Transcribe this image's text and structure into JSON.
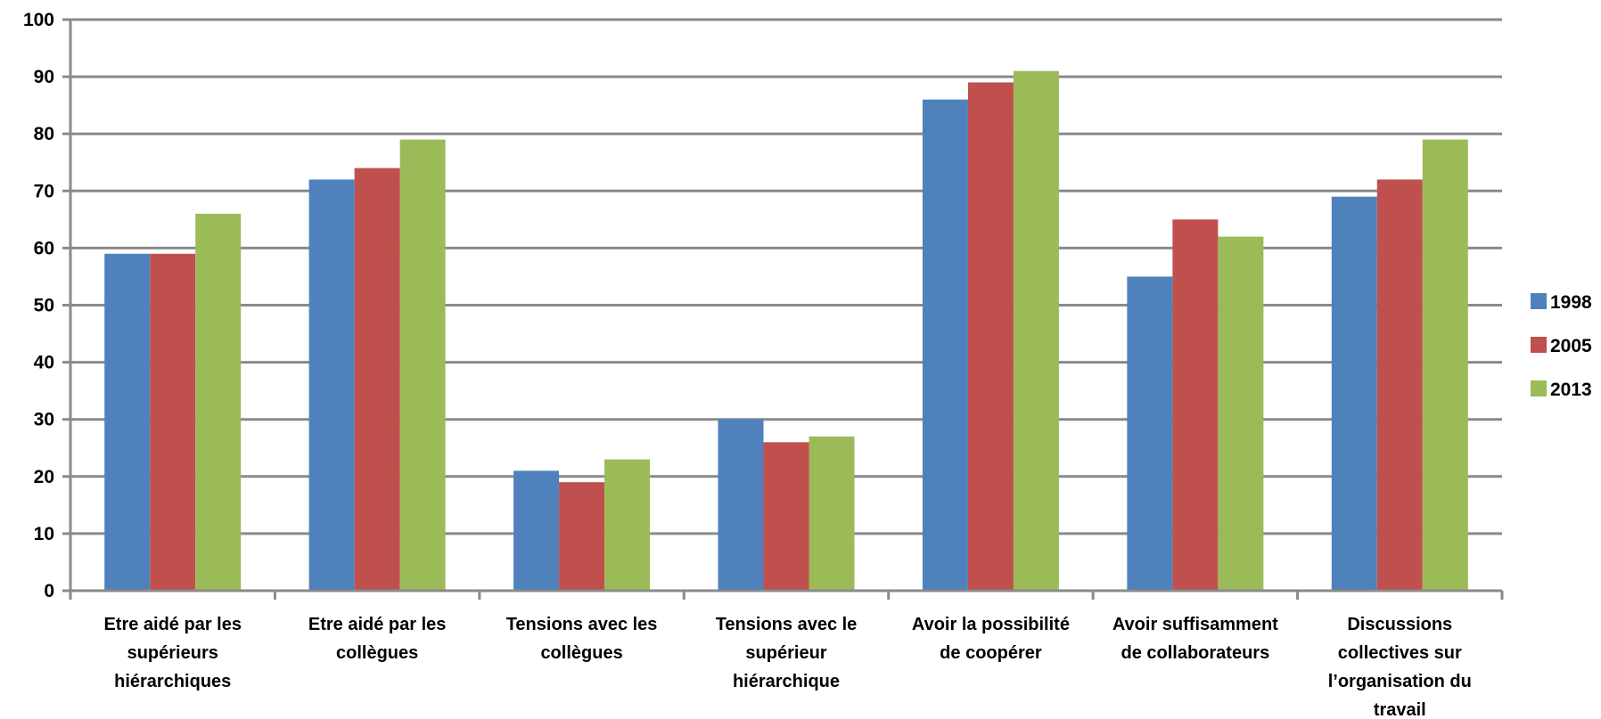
{
  "chart_data": {
    "type": "bar",
    "title": "",
    "xlabel": "",
    "ylabel": "",
    "ylim": [
      0,
      100
    ],
    "yticks": [
      0,
      10,
      20,
      30,
      40,
      50,
      60,
      70,
      80,
      90,
      100
    ],
    "grid": true,
    "legend_position": "right",
    "categories": [
      [
        "Etre aidé par les",
        "supérieurs",
        "hiérarchiques"
      ],
      [
        "Etre aidé par les",
        "collègues"
      ],
      [
        "Tensions avec les",
        "collègues"
      ],
      [
        "Tensions avec le",
        "supérieur",
        "hiérarchique"
      ],
      [
        "Avoir  la possibilité",
        "de coopérer"
      ],
      [
        "Avoir suffisamment",
        "de collaborateurs"
      ],
      [
        "Discussions",
        "collectives sur",
        "l’organisation du",
        "travail"
      ]
    ],
    "series": [
      {
        "name": "1998",
        "color": "#4f81bd",
        "values": [
          59,
          72,
          21,
          30,
          86,
          55,
          69
        ]
      },
      {
        "name": "2005",
        "color": "#c0504d",
        "values": [
          59,
          74,
          19,
          26,
          89,
          65,
          72
        ]
      },
      {
        "name": "2013",
        "color": "#9bbb59",
        "values": [
          66,
          79,
          23,
          27,
          91,
          62,
          79
        ]
      }
    ]
  }
}
